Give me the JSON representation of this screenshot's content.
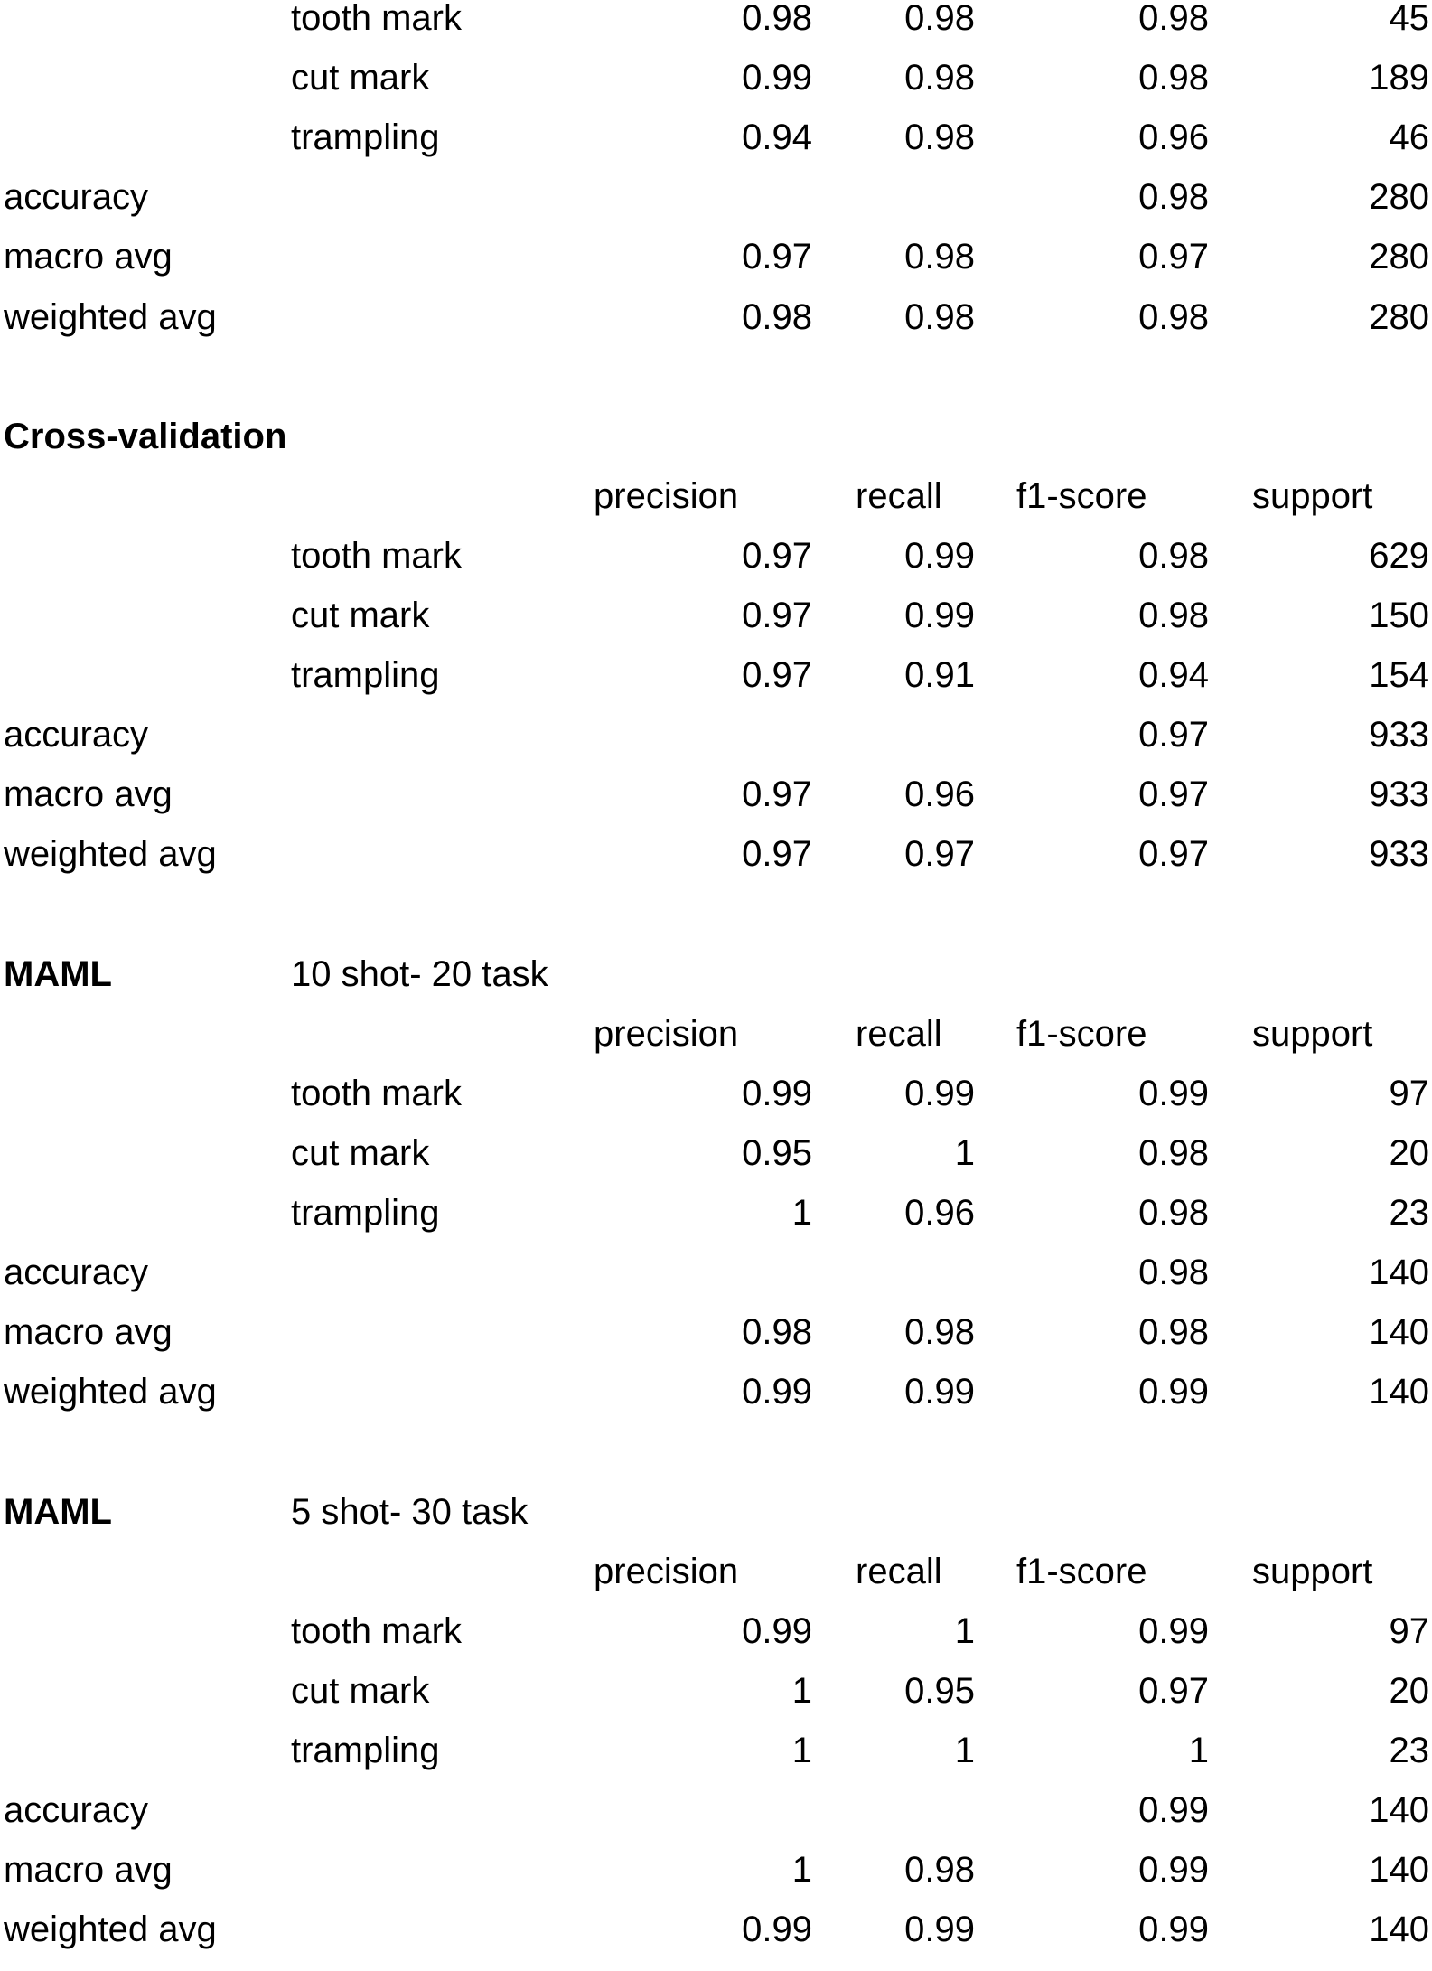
{
  "columns": {
    "precision": "precision",
    "recall": "recall",
    "f1": "f1-score",
    "support": "support"
  },
  "sections": [
    {
      "title": "",
      "subtitle": "",
      "show_header": false,
      "classes": [
        {
          "label": "tooth mark",
          "precision": "0.98",
          "recall": "0.98",
          "f1": "0.98",
          "support": "45"
        },
        {
          "label": "cut mark",
          "precision": "0.99",
          "recall": "0.98",
          "f1": "0.98",
          "support": "189"
        },
        {
          "label": "trampling",
          "precision": "0.94",
          "recall": "0.98",
          "f1": "0.96",
          "support": "46"
        }
      ],
      "summary": [
        {
          "label": "accuracy",
          "precision": "",
          "recall": "",
          "f1": "0.98",
          "support": "280"
        },
        {
          "label": "macro avg",
          "precision": "0.97",
          "recall": "0.98",
          "f1": "0.97",
          "support": "280"
        },
        {
          "label": "weighted avg",
          "precision": "0.98",
          "recall": "0.98",
          "f1": "0.98",
          "support": "280"
        }
      ]
    },
    {
      "title": "Cross-validation",
      "subtitle": "",
      "show_header": true,
      "classes": [
        {
          "label": "tooth mark",
          "precision": "0.97",
          "recall": "0.99",
          "f1": "0.98",
          "support": "629"
        },
        {
          "label": "cut mark",
          "precision": "0.97",
          "recall": "0.99",
          "f1": "0.98",
          "support": "150"
        },
        {
          "label": "trampling",
          "precision": "0.97",
          "recall": "0.91",
          "f1": "0.94",
          "support": "154"
        }
      ],
      "summary": [
        {
          "label": "accuracy",
          "precision": "",
          "recall": "",
          "f1": "0.97",
          "support": "933"
        },
        {
          "label": "macro avg",
          "precision": "0.97",
          "recall": "0.96",
          "f1": "0.97",
          "support": "933"
        },
        {
          "label": "weighted avg",
          "precision": "0.97",
          "recall": "0.97",
          "f1": "0.97",
          "support": "933"
        }
      ]
    },
    {
      "title": "MAML",
      "subtitle": "10 shot- 20 task",
      "show_header": true,
      "classes": [
        {
          "label": "tooth mark",
          "precision": "0.99",
          "recall": "0.99",
          "f1": "0.99",
          "support": "97"
        },
        {
          "label": "cut mark",
          "precision": "0.95",
          "recall": "1",
          "f1": "0.98",
          "support": "20"
        },
        {
          "label": "trampling",
          "precision": "1",
          "recall": "0.96",
          "f1": "0.98",
          "support": "23"
        }
      ],
      "summary": [
        {
          "label": "accuracy",
          "precision": "",
          "recall": "",
          "f1": "0.98",
          "support": "140"
        },
        {
          "label": "macro avg",
          "precision": "0.98",
          "recall": "0.98",
          "f1": "0.98",
          "support": "140"
        },
        {
          "label": "weighted avg",
          "precision": "0.99",
          "recall": "0.99",
          "f1": "0.99",
          "support": "140"
        }
      ]
    },
    {
      "title": "MAML",
      "subtitle": "5 shot- 30 task",
      "show_header": true,
      "classes": [
        {
          "label": "tooth mark",
          "precision": "0.99",
          "recall": "1",
          "f1": "0.99",
          "support": "97"
        },
        {
          "label": "cut mark",
          "precision": "1",
          "recall": "0.95",
          "f1": "0.97",
          "support": "20"
        },
        {
          "label": "trampling",
          "precision": "1",
          "recall": "1",
          "f1": "1",
          "support": "23"
        }
      ],
      "summary": [
        {
          "label": "accuracy",
          "precision": "",
          "recall": "",
          "f1": "0.99",
          "support": "140"
        },
        {
          "label": "macro avg",
          "precision": "1",
          "recall": "0.98",
          "f1": "0.99",
          "support": "140"
        },
        {
          "label": "weighted avg",
          "precision": "0.99",
          "recall": "0.99",
          "f1": "0.99",
          "support": "140"
        }
      ]
    }
  ]
}
